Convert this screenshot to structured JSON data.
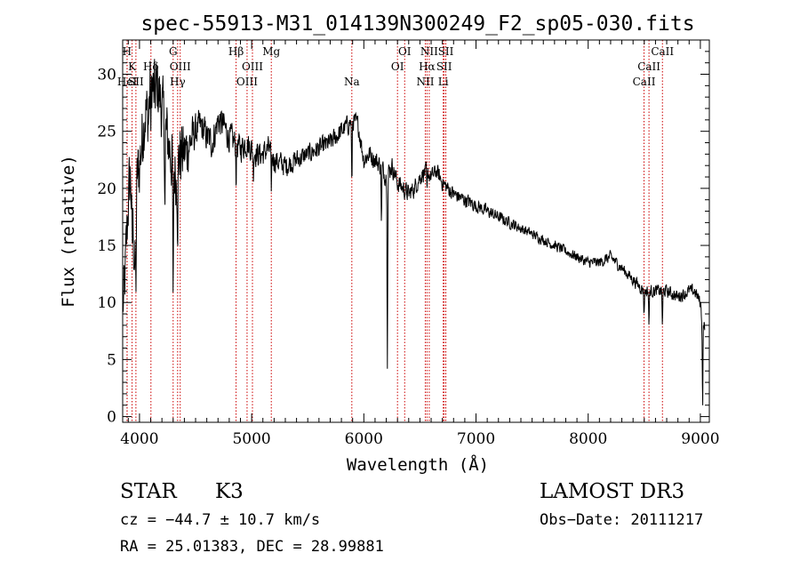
{
  "chart_data": {
    "type": "line",
    "title": "spec-55913-M31_014139N300249_F2_sp05-030.fits",
    "xlabel": "Wavelength (Å)",
    "ylabel": "Flux (relative)",
    "xlim": [
      3850,
      9080
    ],
    "ylim": [
      -0.5,
      33
    ],
    "xticks": [
      4000,
      5000,
      6000,
      7000,
      8000,
      9000
    ],
    "xtick_labels": [
      "4000",
      "5000",
      "6000",
      "7000",
      "8000",
      "9000"
    ],
    "yticks": [
      0,
      5,
      10,
      15,
      20,
      25,
      30
    ],
    "ytick_labels": [
      "0",
      "5",
      "10",
      "15",
      "20",
      "25",
      "30"
    ],
    "grid": false,
    "line_color": "#000000",
    "marker_color": "#cc0000",
    "anchors": [
      [
        3860,
        10
      ],
      [
        3880,
        14
      ],
      [
        3900,
        19
      ],
      [
        3920,
        21
      ],
      [
        3940,
        17
      ],
      [
        3960,
        13
      ],
      [
        3980,
        21
      ],
      [
        4000,
        22
      ],
      [
        4020,
        24
      ],
      [
        4050,
        27
      ],
      [
        4080,
        26
      ],
      [
        4100,
        30
      ],
      [
        4130,
        28
      ],
      [
        4160,
        29
      ],
      [
        4200,
        27
      ],
      [
        4230,
        25
      ],
      [
        4260,
        24
      ],
      [
        4300,
        22
      ],
      [
        4330,
        21
      ],
      [
        4360,
        23
      ],
      [
        4400,
        23
      ],
      [
        4450,
        24
      ],
      [
        4500,
        25
      ],
      [
        4550,
        25.5
      ],
      [
        4600,
        24.5
      ],
      [
        4650,
        24
      ],
      [
        4700,
        26
      ],
      [
        4750,
        25.5
      ],
      [
        4800,
        24.5
      ],
      [
        4850,
        24
      ],
      [
        4900,
        23.5
      ],
      [
        4950,
        24
      ],
      [
        5000,
        23.5
      ],
      [
        5050,
        23
      ],
      [
        5100,
        23
      ],
      [
        5150,
        23.5
      ],
      [
        5200,
        22.5
      ],
      [
        5300,
        22
      ],
      [
        5400,
        22.5
      ],
      [
        5500,
        23
      ],
      [
        5600,
        23.5
      ],
      [
        5700,
        24
      ],
      [
        5800,
        25
      ],
      [
        5850,
        25.5
      ],
      [
        5900,
        26
      ],
      [
        5950,
        25.5
      ],
      [
        6000,
        22.5
      ],
      [
        6050,
        23
      ],
      [
        6100,
        22.5
      ],
      [
        6150,
        22
      ],
      [
        6200,
        21
      ],
      [
        6250,
        22
      ],
      [
        6300,
        20.5
      ],
      [
        6350,
        20
      ],
      [
        6400,
        19.5
      ],
      [
        6450,
        20
      ],
      [
        6500,
        21
      ],
      [
        6550,
        21.5
      ],
      [
        6600,
        21
      ],
      [
        6650,
        21.5
      ],
      [
        6700,
        20.5
      ],
      [
        6800,
        19.5
      ],
      [
        6900,
        19
      ],
      [
        7000,
        18.5
      ],
      [
        7100,
        18
      ],
      [
        7200,
        17.5
      ],
      [
        7300,
        17
      ],
      [
        7400,
        16.5
      ],
      [
        7500,
        16
      ],
      [
        7600,
        15.5
      ],
      [
        7700,
        15
      ],
      [
        7800,
        14.5
      ],
      [
        7900,
        14
      ],
      [
        8000,
        13.5
      ],
      [
        8100,
        13.5
      ],
      [
        8200,
        14
      ],
      [
        8300,
        13
      ],
      [
        8400,
        12
      ],
      [
        8500,
        11
      ],
      [
        8600,
        11
      ],
      [
        8700,
        11
      ],
      [
        8800,
        10.5
      ],
      [
        8900,
        11
      ],
      [
        8950,
        11
      ],
      [
        9000,
        10
      ],
      [
        9020,
        8
      ]
    ],
    "dips": [
      [
        3934,
        4
      ],
      [
        3968,
        5
      ],
      [
        4102,
        5
      ],
      [
        4227,
        6
      ],
      [
        4300,
        14
      ],
      [
        4340,
        4
      ],
      [
        4861,
        3
      ],
      [
        5015,
        2
      ],
      [
        5175,
        3
      ],
      [
        5893,
        6
      ],
      [
        6157,
        5
      ],
      [
        6210,
        16
      ],
      [
        6563,
        2
      ],
      [
        8498,
        2
      ],
      [
        8542,
        3
      ],
      [
        8662,
        3
      ],
      [
        9020,
        7
      ]
    ],
    "noise_amplitude": [
      [
        3850,
        4.5
      ],
      [
        4400,
        4
      ],
      [
        4500,
        2
      ],
      [
        5500,
        1.2
      ],
      [
        6200,
        1.2
      ],
      [
        6600,
        1
      ],
      [
        7500,
        0.6
      ],
      [
        9100,
        0.8
      ]
    ],
    "spectral_lines": [
      {
        "wl": 3889,
        "row": 0,
        "text": "H"
      },
      {
        "wl": 3934,
        "row": 1,
        "text": "K"
      },
      {
        "wl": 3890,
        "row": 2,
        "text": "HeI"
      },
      {
        "wl": 3968,
        "row": 2,
        "text": "SII"
      },
      {
        "wl": 4102,
        "row": 1,
        "text": "Hδ"
      },
      {
        "wl": 4300,
        "row": 0,
        "text": "G"
      },
      {
        "wl": 4363,
        "row": 1,
        "text": "OIII"
      },
      {
        "wl": 4340,
        "row": 2,
        "text": "Hγ"
      },
      {
        "wl": 4861,
        "row": 0,
        "text": "Hβ"
      },
      {
        "wl": 5007,
        "row": 1,
        "text": "OIII"
      },
      {
        "wl": 4959,
        "row": 2,
        "text": "OIII"
      },
      {
        "wl": 5175,
        "row": 0,
        "text": "Mg"
      },
      {
        "wl": 5893,
        "row": 2,
        "text": "Na"
      },
      {
        "wl": 6364,
        "row": 0,
        "text": "OI"
      },
      {
        "wl": 6300,
        "row": 1,
        "text": "OI"
      },
      {
        "wl": 6583,
        "row": 0,
        "text": "NII"
      },
      {
        "wl": 6563,
        "row": 1,
        "text": "Hα"
      },
      {
        "wl": 6548,
        "row": 2,
        "text": "NII"
      },
      {
        "wl": 6731,
        "row": 0,
        "text": "SII"
      },
      {
        "wl": 6716,
        "row": 1,
        "text": "SII"
      },
      {
        "wl": 6708,
        "row": 2,
        "text": "Li"
      },
      {
        "wl": 8662,
        "row": 0,
        "text": "CaII"
      },
      {
        "wl": 8542,
        "row": 1,
        "text": "CaII"
      },
      {
        "wl": 8498,
        "row": 2,
        "text": "CaII"
      }
    ]
  },
  "info": {
    "object_class": "STAR",
    "subclass": "K3",
    "survey": "LAMOST DR3",
    "cz": "cz = −44.7 ± 10.7 km/s",
    "obs_date": "Obs−Date: 20111217",
    "coords": "RA =  25.01383, DEC =  28.99881"
  }
}
